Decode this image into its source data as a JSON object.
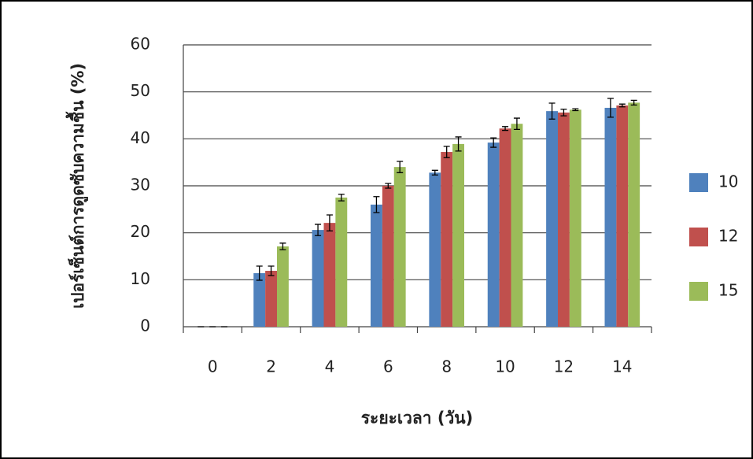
{
  "chart_data": {
    "type": "bar",
    "y_label": "เปอร์เซ็นต์การดูดซับความชื้น (%)",
    "x_label": "ระยะเวลา (วัน)",
    "categories": [
      0,
      2,
      4,
      6,
      8,
      10,
      12,
      14
    ],
    "series": [
      {
        "name": "10",
        "color": "#4f81bd",
        "values": [
          0,
          11.4,
          20.6,
          26.0,
          32.8,
          39.2,
          45.9,
          46.6
        ],
        "errors": [
          0,
          1.5,
          1.2,
          1.7,
          0.5,
          1.0,
          1.7,
          2.0
        ]
      },
      {
        "name": "12",
        "color": "#c0504d",
        "values": [
          0,
          11.9,
          22.1,
          30.0,
          37.2,
          42.2,
          45.6,
          47.1
        ],
        "errors": [
          0,
          1.0,
          1.7,
          0.5,
          1.2,
          0.4,
          0.7,
          0.3
        ]
      },
      {
        "name": "15",
        "color": "#9bbb59",
        "values": [
          0,
          17.1,
          27.5,
          34.0,
          38.9,
          43.2,
          46.2,
          47.7
        ],
        "errors": [
          0,
          0.7,
          0.7,
          1.2,
          1.5,
          1.2,
          0.2,
          0.5
        ]
      }
    ],
    "ylim": [
      0,
      60
    ],
    "yticks": [
      0,
      10,
      20,
      30,
      40,
      50,
      60
    ],
    "grid": true,
    "legend": "right"
  }
}
